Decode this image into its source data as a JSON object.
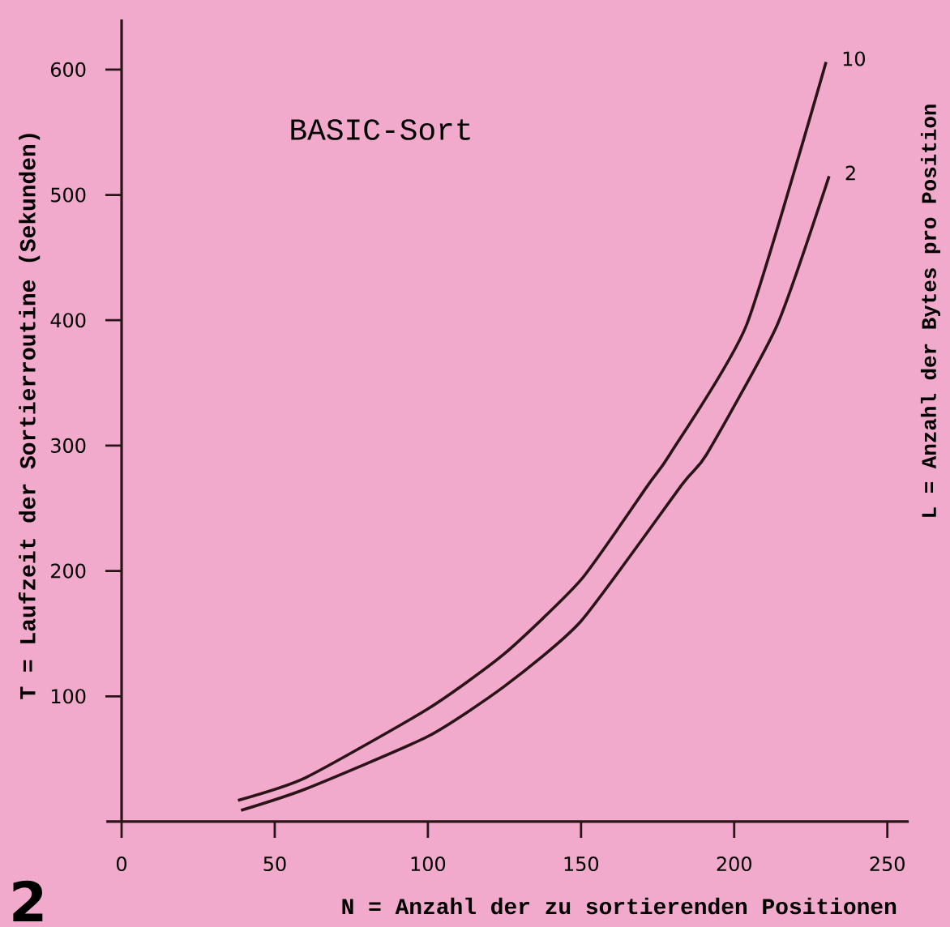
{
  "chart_data": {
    "type": "line",
    "title": "BASIC-Sort",
    "xlabel": "N = Anzahl der zu sortierenden Positionen",
    "ylabel": "T = Laufzeit der Sortierroutine (Sekunden)",
    "xlim": [
      -5,
      257
    ],
    "ylim": [
      0,
      640
    ],
    "xticks": [
      0,
      50,
      100,
      150,
      200,
      250
    ],
    "yticks": [
      100,
      200,
      300,
      400,
      500,
      600
    ],
    "grid": false,
    "legend": false,
    "marker": "none",
    "line_style": "solid",
    "series": [
      {
        "name": "10",
        "color": "#2a1418",
        "x": [
          38,
          60,
          100,
          125,
          150,
          172,
          179,
          204,
          230
        ],
        "values": [
          17,
          35,
          90,
          134,
          193,
          269,
          293,
          396,
          606
        ]
      },
      {
        "name": "2",
        "color": "#2a1418",
        "x": [
          39,
          60,
          100,
          125,
          150,
          183,
          191,
          214,
          231
        ],
        "values": [
          9,
          26,
          68,
          108,
          160,
          269,
          293,
          396,
          515
        ]
      }
    ],
    "annotations": [
      "L = Anzahl der Bytes pro Position",
      "2"
    ]
  }
}
